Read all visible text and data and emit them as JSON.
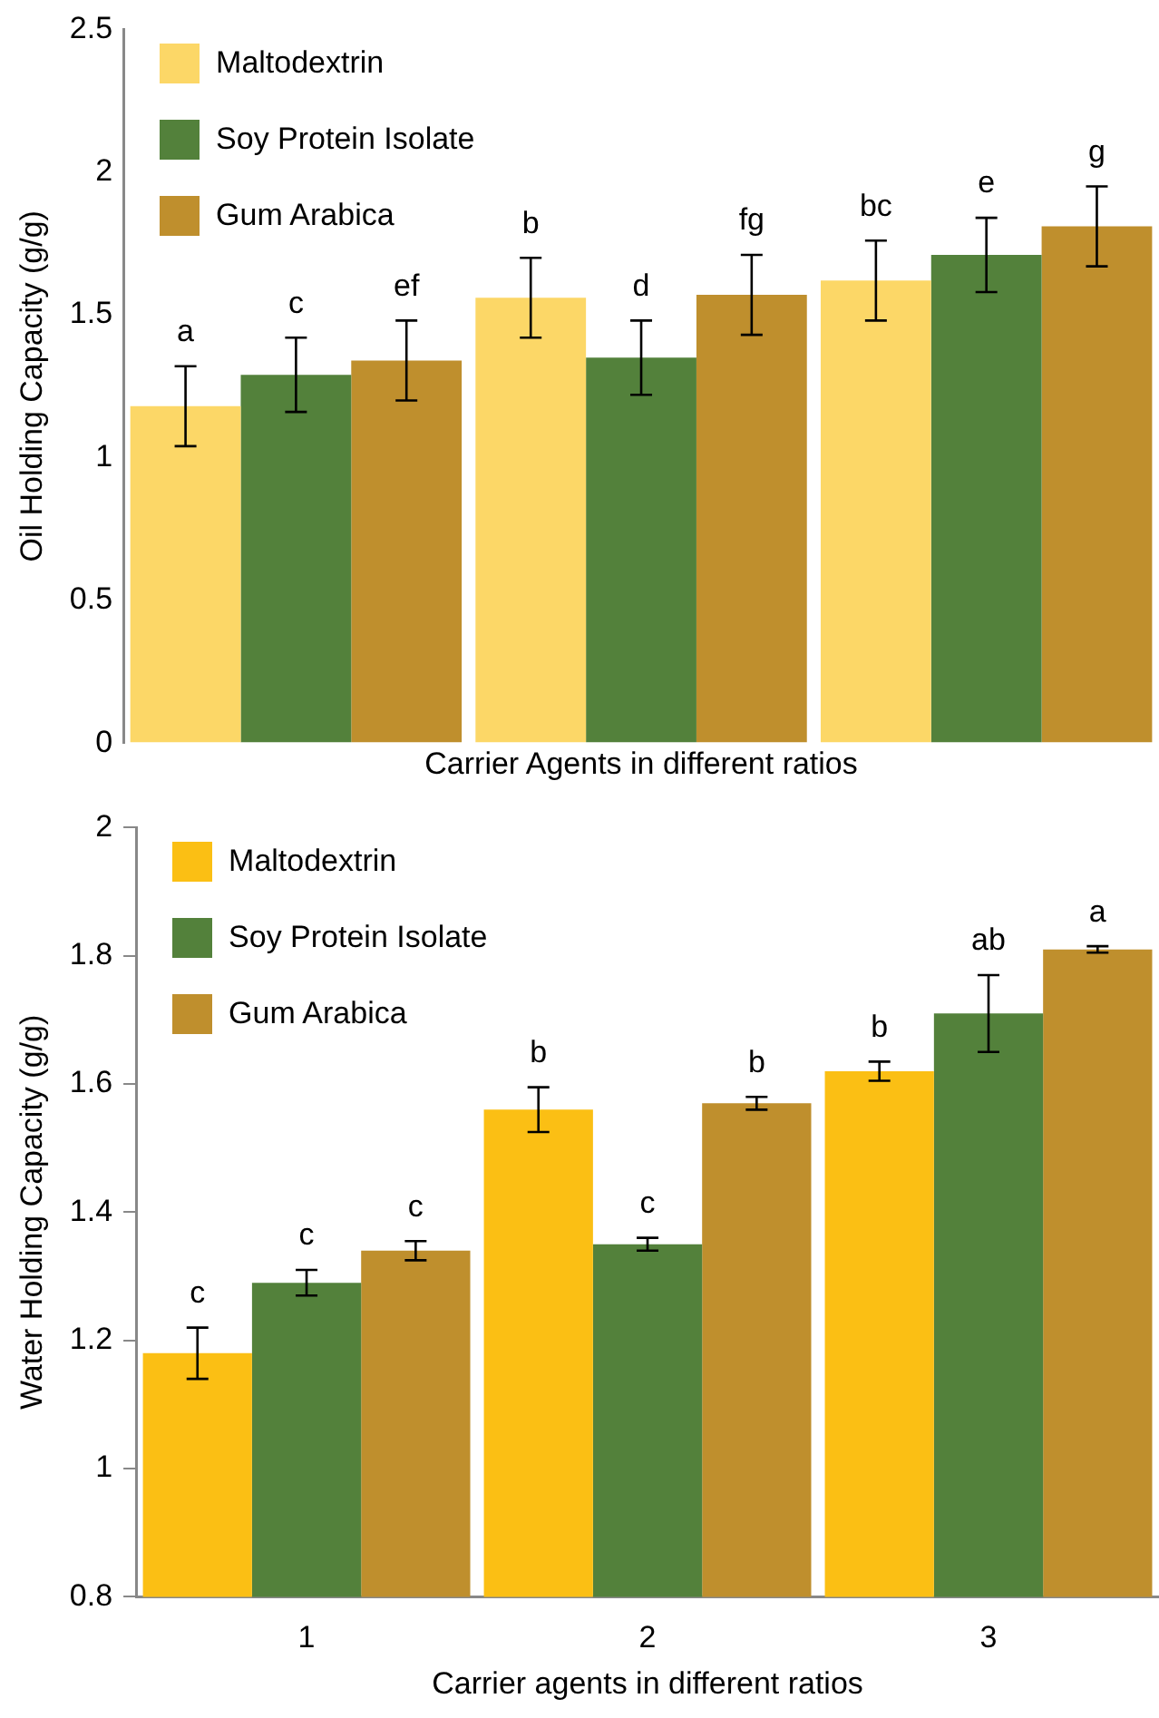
{
  "chart_data": [
    {
      "type": "bar",
      "xlabel": "Carrier Agents in different ratios",
      "ylabel": "Oil Holding Capacity (g/g)",
      "categories": [
        null,
        null,
        null
      ],
      "ylim": [
        0,
        2.5
      ],
      "yticks": [
        0,
        0.5,
        1,
        1.5,
        2,
        2.5
      ],
      "grid": false,
      "legend": "top left",
      "tick_labels": "y",
      "series": [
        {
          "name": "Maltodextrin",
          "color": "#fcd767",
          "values": [
            1.18,
            1.56,
            1.62
          ],
          "errors": [
            0.14,
            0.14,
            0.14
          ],
          "value_labels": [
            "a",
            "b",
            "bc"
          ]
        },
        {
          "name": "Soy Protein Isolate",
          "color": "#53813b",
          "values": [
            1.29,
            1.35,
            1.71
          ],
          "errors": [
            0.13,
            0.13,
            0.13
          ],
          "value_labels": [
            "c",
            "d",
            "e"
          ]
        },
        {
          "name": "Gum Arabica",
          "color": "#bf8f2d",
          "values": [
            1.34,
            1.57,
            1.81
          ],
          "errors": [
            0.14,
            0.14,
            0.14
          ],
          "value_labels": [
            "ef",
            "fg",
            "g"
          ]
        }
      ]
    },
    {
      "type": "bar",
      "xlabel": "Carrier agents in different ratios",
      "ylabel": "Water Holding Capacity (g/g)",
      "categories": [
        "1",
        "2",
        "3"
      ],
      "ylim": [
        0.8,
        2
      ],
      "yticks": [
        0.8,
        1,
        1.2,
        1.4,
        1.6,
        1.8,
        2
      ],
      "grid": false,
      "legend": "top left",
      "series": [
        {
          "name": "Maltodextrin",
          "color": "#fbbf14",
          "values": [
            1.18,
            1.56,
            1.62
          ],
          "errors": [
            0.04,
            0.035,
            0.015
          ],
          "value_labels": [
            "c",
            "b",
            "b"
          ]
        },
        {
          "name": "Soy Protein Isolate",
          "color": "#53813b",
          "values": [
            1.29,
            1.35,
            1.71
          ],
          "errors": [
            0.02,
            0.01,
            0.06
          ],
          "value_labels": [
            "c",
            "c",
            "ab"
          ]
        },
        {
          "name": "Gum Arabica",
          "color": "#bf8f2d",
          "values": [
            1.34,
            1.57,
            1.81
          ],
          "errors": [
            0.015,
            0.01,
            0.005
          ],
          "value_labels": [
            "c",
            "b",
            "a"
          ]
        }
      ]
    }
  ]
}
